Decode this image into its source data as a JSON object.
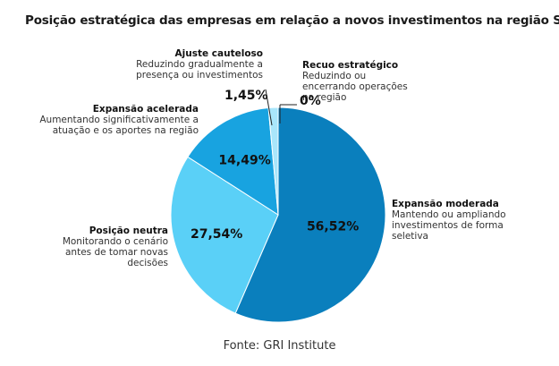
{
  "chart_data": {
    "type": "pie",
    "title": "Posição estratégica das empresas em relação a novos investimentos na região Sul",
    "slices": [
      {
        "name": "Expansão moderada",
        "description": "Mantendo ou ampliando investimentos de forma seletiva",
        "value": 56.52,
        "label": "56,52%",
        "color": "#0a7fbd"
      },
      {
        "name": "Posição neutra",
        "description": "Monitorando o cenário antes de tomar novas decisões",
        "value": 27.54,
        "label": "27,54%",
        "color": "#5ad0f7"
      },
      {
        "name": "Expansão acelerada",
        "description": "Aumentando significativamente a atuação e os aportes na região",
        "value": 14.49,
        "label": "14,49%",
        "color": "#18a3e0"
      },
      {
        "name": "Ajuste cauteloso",
        "description": "Reduzindo gradualmente a presença ou investimentos",
        "value": 1.45,
        "label": "1,45%",
        "color": "#a9e6fb"
      },
      {
        "name": "Recuo estratégico",
        "description": "Reduzindo ou encerrando operações na região",
        "value": 0,
        "label": "0%",
        "color": "#0a3f66"
      }
    ],
    "source": "Fonte: GRI Institute"
  }
}
